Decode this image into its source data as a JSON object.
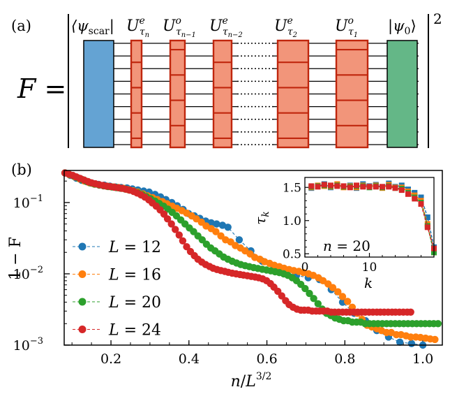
{
  "panel_a": {
    "label": "(a)",
    "lhs": "F =",
    "exponent": "2",
    "gates": [
      {
        "name": "bra-scar",
        "label": "⟨ψscar|",
        "base": "⟨ψ",
        "sub": "scar",
        "post": "|"
      },
      {
        "name": "u-tau-n-even",
        "base": "U",
        "sup": "e",
        "sub": "τn"
      },
      {
        "name": "u-tau-n-1-odd",
        "base": "U",
        "sup": "o",
        "sub": "τn−1"
      },
      {
        "name": "u-tau-n-2-even",
        "base": "U",
        "sup": "e",
        "sub": "τn−2"
      },
      {
        "name": "u-tau-2-even",
        "base": "U",
        "sup": "e",
        "sub": "τ2"
      },
      {
        "name": "u-tau-1-odd",
        "base": "U",
        "sup": "o",
        "sub": "τ1"
      },
      {
        "name": "ket-psi0",
        "base": "|ψ",
        "sub": "0",
        "post": "⟩"
      }
    ],
    "colors": {
      "scar": "#64a3d3",
      "gate": "#f2957a",
      "gate_edge": "#c0260d",
      "ket": "#64b787"
    }
  },
  "panel_b": {
    "label": "(b)"
  },
  "chart_data": [
    {
      "type": "scatter",
      "title": "",
      "xlabel": "n/L^3/2",
      "ylabel": "1 − F",
      "xlim": [
        0.08,
        1.05
      ],
      "ylim_log10": [
        -3.0,
        -0.55
      ],
      "xticks": [
        0.2,
        0.4,
        0.6,
        0.8,
        1.0
      ],
      "xtick_labels": [
        "0.2",
        "0.4",
        "0.6",
        "0.8",
        "1.0"
      ],
      "yticks_log10": [
        -3,
        -2,
        -1
      ],
      "ytick_labels": [
        {
          "base": "10",
          "exp": "−3"
        },
        {
          "base": "10",
          "exp": "−2"
        },
        {
          "base": "10",
          "exp": "−1"
        }
      ],
      "legend_position": "lower-left",
      "series": [
        {
          "name": "L = 12",
          "color": "#1f77b4",
          "x": [
            0.082,
            0.096,
            0.111,
            0.125,
            0.139,
            0.154,
            0.168,
            0.183,
            0.197,
            0.212,
            0.226,
            0.241,
            0.255,
            0.269,
            0.284,
            0.298,
            0.313,
            0.327,
            0.341,
            0.356,
            0.37,
            0.385,
            0.399,
            0.414,
            0.428,
            0.443,
            0.457,
            0.471,
            0.486,
            0.5,
            0.529,
            0.559,
            0.588,
            0.618,
            0.647,
            0.676,
            0.706,
            0.735,
            0.765,
            0.794,
            0.824,
            0.853,
            0.882,
            0.912,
            0.941,
            0.971,
            1.0
          ],
          "y": [
            0.26,
            0.24,
            0.22,
            0.205,
            0.195,
            0.185,
            0.18,
            0.175,
            0.17,
            0.165,
            0.162,
            0.16,
            0.155,
            0.15,
            0.145,
            0.14,
            0.13,
            0.12,
            0.11,
            0.1,
            0.09,
            0.08,
            0.07,
            0.065,
            0.06,
            0.055,
            0.052,
            0.05,
            0.048,
            0.045,
            0.03,
            0.021,
            0.015,
            0.012,
            0.0105,
            0.0095,
            0.0088,
            0.0083,
            0.006,
            0.004,
            0.0028,
            0.0022,
            0.0016,
            0.0013,
            0.0011,
            0.00105,
            0.001
          ]
        },
        {
          "name": "L = 16",
          "color": "#ff7f0e",
          "x": [
            0.082,
            0.094,
            0.107,
            0.119,
            0.132,
            0.144,
            0.157,
            0.169,
            0.182,
            0.194,
            0.207,
            0.219,
            0.232,
            0.244,
            0.257,
            0.269,
            0.282,
            0.294,
            0.307,
            0.319,
            0.332,
            0.344,
            0.357,
            0.369,
            0.382,
            0.394,
            0.407,
            0.419,
            0.432,
            0.444,
            0.457,
            0.469,
            0.482,
            0.494,
            0.507,
            0.519,
            0.532,
            0.544,
            0.557,
            0.569,
            0.582,
            0.594,
            0.607,
            0.619,
            0.632,
            0.644,
            0.657,
            0.669,
            0.682,
            0.694,
            0.707,
            0.719,
            0.732,
            0.744,
            0.757,
            0.769,
            0.782,
            0.794,
            0.807,
            0.819,
            0.832,
            0.844,
            0.857,
            0.869,
            0.882,
            0.894,
            0.907,
            0.919,
            0.932,
            0.944,
            0.957,
            0.969,
            0.982,
            0.994,
            1.007,
            1.019,
            1.031
          ],
          "y": [
            0.26,
            0.245,
            0.23,
            0.215,
            0.2,
            0.19,
            0.182,
            0.177,
            0.172,
            0.168,
            0.165,
            0.162,
            0.158,
            0.152,
            0.146,
            0.14,
            0.132,
            0.124,
            0.117,
            0.11,
            0.103,
            0.096,
            0.089,
            0.083,
            0.077,
            0.071,
            0.065,
            0.059,
            0.053,
            0.047,
            0.043,
            0.039,
            0.034,
            0.03,
            0.028,
            0.025,
            0.023,
            0.021,
            0.019,
            0.017,
            0.016,
            0.0148,
            0.014,
            0.0132,
            0.0126,
            0.012,
            0.0115,
            0.0111,
            0.0108,
            0.0104,
            0.01,
            0.0095,
            0.0088,
            0.008,
            0.0072,
            0.0064,
            0.0056,
            0.0048,
            0.0041,
            0.0034,
            0.0028,
            0.0023,
            0.0019,
            0.0018,
            0.0017,
            0.0016,
            0.0015,
            0.0015,
            0.0014,
            0.0014,
            0.00135,
            0.0013,
            0.0013,
            0.00128,
            0.00125,
            0.00122,
            0.0012
          ]
        },
        {
          "name": "L = 20",
          "color": "#2ca02c",
          "x": [
            0.082,
            0.093,
            0.104,
            0.115,
            0.126,
            0.137,
            0.148,
            0.159,
            0.17,
            0.181,
            0.192,
            0.203,
            0.214,
            0.225,
            0.236,
            0.247,
            0.258,
            0.269,
            0.28,
            0.291,
            0.302,
            0.313,
            0.324,
            0.335,
            0.346,
            0.357,
            0.368,
            0.379,
            0.39,
            0.401,
            0.412,
            0.423,
            0.434,
            0.445,
            0.456,
            0.467,
            0.478,
            0.489,
            0.5,
            0.511,
            0.522,
            0.533,
            0.544,
            0.555,
            0.566,
            0.577,
            0.588,
            0.599,
            0.61,
            0.621,
            0.632,
            0.643,
            0.654,
            0.665,
            0.676,
            0.687,
            0.698,
            0.709,
            0.72,
            0.731,
            0.742,
            0.753,
            0.764,
            0.775,
            0.786,
            0.797,
            0.808,
            0.819,
            0.83,
            0.841,
            0.852,
            0.863,
            0.874,
            0.885,
            0.896,
            0.907,
            0.918,
            0.929,
            0.94,
            0.951,
            0.962,
            0.973,
            0.984,
            0.995,
            1.006,
            1.017,
            1.028,
            1.039
          ],
          "y": [
            0.26,
            0.248,
            0.235,
            0.222,
            0.21,
            0.198,
            0.188,
            0.181,
            0.176,
            0.172,
            0.168,
            0.165,
            0.162,
            0.159,
            0.155,
            0.15,
            0.144,
            0.137,
            0.129,
            0.121,
            0.113,
            0.105,
            0.097,
            0.089,
            0.081,
            0.073,
            0.065,
            0.057,
            0.05,
            0.044,
            0.039,
            0.034,
            0.03,
            0.026,
            0.023,
            0.021,
            0.019,
            0.0172,
            0.016,
            0.015,
            0.0142,
            0.0135,
            0.013,
            0.0126,
            0.0122,
            0.0119,
            0.0116,
            0.0113,
            0.011,
            0.0107,
            0.0104,
            0.01,
            0.0095,
            0.0088,
            0.008,
            0.0071,
            0.0062,
            0.0053,
            0.0045,
            0.0038,
            0.0032,
            0.0028,
            0.0026,
            0.0024,
            0.0023,
            0.0022,
            0.0022,
            0.0021,
            0.0021,
            0.0021,
            0.002,
            0.002,
            0.002,
            0.002,
            0.002,
            0.002,
            0.002,
            0.002,
            0.002,
            0.002,
            0.002,
            0.002,
            0.002,
            0.002,
            0.002,
            0.002,
            0.002,
            0.002
          ]
        },
        {
          "name": "L = 24",
          "color": "#d62728",
          "x": [
            0.082,
            0.092,
            0.102,
            0.111,
            0.121,
            0.131,
            0.141,
            0.15,
            0.16,
            0.17,
            0.18,
            0.189,
            0.199,
            0.209,
            0.219,
            0.228,
            0.238,
            0.248,
            0.258,
            0.267,
            0.277,
            0.287,
            0.297,
            0.306,
            0.316,
            0.326,
            0.336,
            0.345,
            0.355,
            0.365,
            0.375,
            0.384,
            0.394,
            0.404,
            0.414,
            0.423,
            0.433,
            0.443,
            0.453,
            0.462,
            0.472,
            0.482,
            0.492,
            0.501,
            0.511,
            0.521,
            0.531,
            0.54,
            0.55,
            0.56,
            0.57,
            0.579,
            0.589,
            0.599,
            0.609,
            0.618,
            0.628,
            0.638,
            0.648,
            0.657,
            0.667,
            0.677,
            0.687,
            0.696,
            0.706,
            0.716,
            0.726,
            0.735,
            0.745,
            0.755,
            0.765,
            0.774,
            0.784,
            0.794,
            0.804,
            0.813,
            0.823,
            0.833,
            0.843,
            0.852,
            0.862,
            0.872,
            0.882,
            0.891,
            0.901,
            0.911,
            0.921,
            0.93,
            0.94,
            0.95,
            0.96,
            0.969
          ],
          "y": [
            0.26,
            0.25,
            0.24,
            0.229,
            0.218,
            0.207,
            0.197,
            0.189,
            0.183,
            0.178,
            0.174,
            0.17,
            0.167,
            0.164,
            0.161,
            0.158,
            0.154,
            0.149,
            0.143,
            0.136,
            0.128,
            0.119,
            0.109,
            0.099,
            0.089,
            0.079,
            0.069,
            0.059,
            0.05,
            0.042,
            0.035,
            0.029,
            0.024,
            0.0205,
            0.018,
            0.016,
            0.0146,
            0.0135,
            0.0127,
            0.012,
            0.0115,
            0.0111,
            0.0108,
            0.0105,
            0.0102,
            0.01,
            0.0098,
            0.0096,
            0.0094,
            0.0092,
            0.009,
            0.0088,
            0.0085,
            0.008,
            0.0073,
            0.0065,
            0.0057,
            0.0049,
            0.0042,
            0.0037,
            0.0034,
            0.0032,
            0.0031,
            0.0031,
            0.0031,
            0.003,
            0.003,
            0.003,
            0.003,
            0.003,
            0.0029,
            0.0029,
            0.0029,
            0.0029,
            0.0029,
            0.0029,
            0.0029,
            0.0029,
            0.0029,
            0.0029,
            0.0029,
            0.0029,
            0.0029,
            0.0029,
            0.0029,
            0.0029,
            0.0029,
            0.0029,
            0.0029,
            0.0029,
            0.0029,
            0.0029
          ]
        }
      ]
    },
    {
      "type": "line",
      "title": "",
      "xlabel": "k",
      "ylabel": "τk",
      "annotation": "n = 20",
      "xlim": [
        0,
        20
      ],
      "ylim": [
        0.45,
        1.65
      ],
      "xticks": [
        0,
        10
      ],
      "xtick_labels": [
        "0",
        "10"
      ],
      "yticks": [
        0.5,
        1.0,
        1.5
      ],
      "ytick_labels": [
        "0.5",
        "1.0",
        "1.5"
      ],
      "x": [
        1,
        2,
        3,
        4,
        5,
        6,
        7,
        8,
        9,
        10,
        11,
        12,
        13,
        14,
        15,
        16,
        17,
        18,
        19,
        20
      ],
      "series": [
        {
          "name": "L = 12",
          "color": "#1f77b4",
          "values": [
            1.49,
            1.52,
            1.55,
            1.5,
            1.54,
            1.51,
            1.53,
            1.49,
            1.55,
            1.52,
            1.54,
            1.5,
            1.56,
            1.51,
            1.53,
            1.47,
            1.42,
            1.35,
            1.05,
            0.6
          ]
        },
        {
          "name": "L = 16",
          "color": "#ff7f0e",
          "values": [
            1.5,
            1.53,
            1.52,
            1.51,
            1.55,
            1.5,
            1.52,
            1.5,
            1.53,
            1.51,
            1.53,
            1.49,
            1.54,
            1.5,
            1.5,
            1.44,
            1.38,
            1.3,
            0.95,
            0.52
          ]
        },
        {
          "name": "L = 20",
          "color": "#2ca02c",
          "values": [
            1.51,
            1.52,
            1.53,
            1.52,
            1.53,
            1.51,
            1.51,
            1.52,
            1.52,
            1.5,
            1.52,
            1.5,
            1.52,
            1.49,
            1.48,
            1.42,
            1.35,
            1.27,
            0.92,
            0.52
          ]
        },
        {
          "name": "L = 24",
          "color": "#d62728",
          "values": [
            1.52,
            1.51,
            1.54,
            1.53,
            1.52,
            1.52,
            1.5,
            1.53,
            1.51,
            1.51,
            1.51,
            1.51,
            1.51,
            1.49,
            1.46,
            1.4,
            1.33,
            1.25,
            0.9,
            0.58
          ]
        }
      ]
    }
  ]
}
